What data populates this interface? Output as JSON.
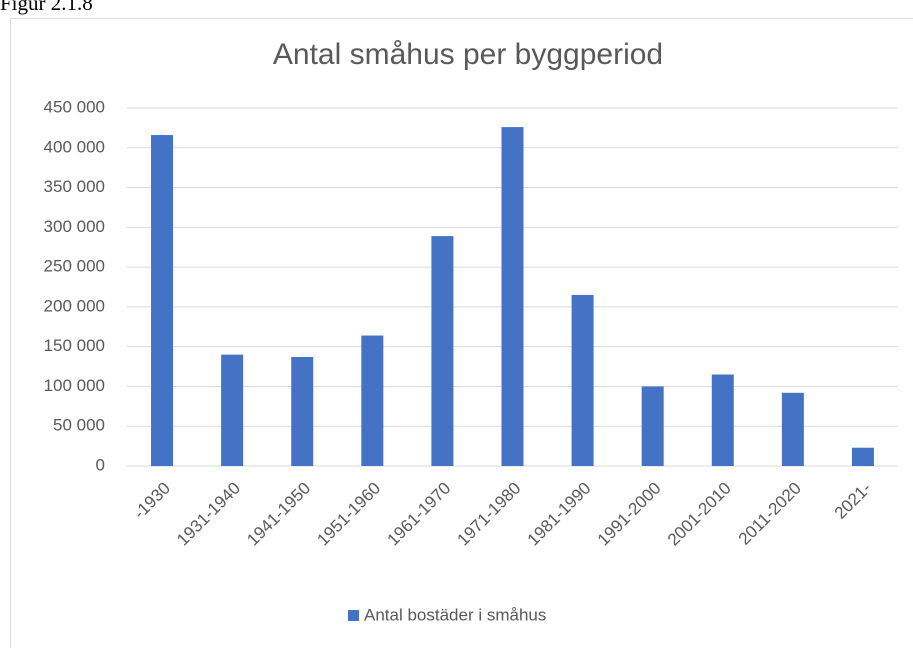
{
  "caption": "Figur 2.1.8",
  "chart_data": {
    "type": "bar",
    "title": "Antal småhus per byggperiod",
    "categories": [
      "-1930",
      "1931-1940",
      "1941-1950",
      "1951-1960",
      "1961-1970",
      "1971-1980",
      "1981-1990",
      "1991-2000",
      "2001-2010",
      "2011-2020",
      "2021-"
    ],
    "series": [
      {
        "name": "Antal bostäder i småhus",
        "color": "#4472c4",
        "values": [
          416000,
          140000,
          137000,
          164000,
          289000,
          426000,
          215000,
          100000,
          115000,
          92000,
          23000
        ]
      }
    ],
    "ylim": [
      0,
      450000
    ],
    "yticks": [
      0,
      {
        "value": 50000,
        "label": "50 000"
      },
      {
        "value": 100000,
        "label": "100 000"
      },
      {
        "value": 150000,
        "label": "150 000"
      },
      {
        "value": 200000,
        "label": "200 000"
      },
      {
        "value": 250000,
        "label": "250 000"
      },
      {
        "value": 300000,
        "label": "300 000"
      },
      {
        "value": 350000,
        "label": "350 000"
      },
      {
        "value": 400000,
        "label": "400 000"
      },
      {
        "value": 450000,
        "label": "450 000"
      }
    ],
    "grid": true,
    "legend": "bottom"
  }
}
